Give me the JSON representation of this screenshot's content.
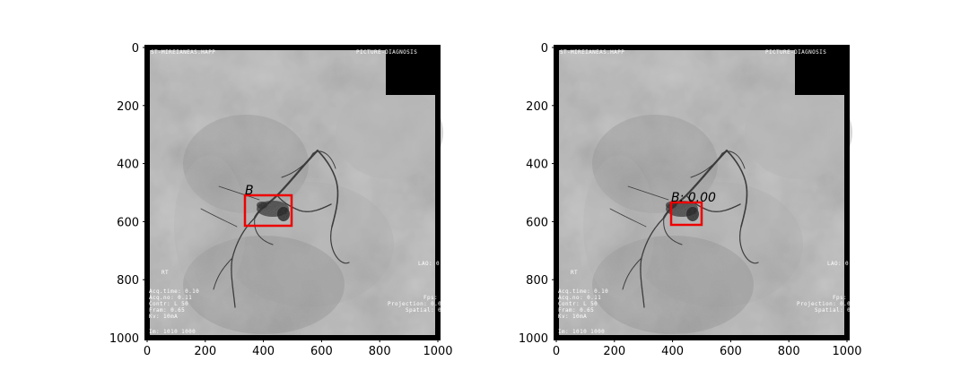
{
  "panels": [
    {
      "id": "left",
      "x_ticks": [
        "0",
        "200",
        "400",
        "600",
        "800",
        "1000"
      ],
      "y_ticks": [
        "0",
        "200",
        "400",
        "600",
        "800",
        "1000"
      ],
      "box_label": "B",
      "overlay": {
        "top_left": "ST-MIREIANEAS.HAPP",
        "top_right": "PICTURE-DIAGNOSIS",
        "mid_left": "RT",
        "mid_right": "LAO: 0",
        "bottom_left_lines": [
          "Acq.time: 0.10",
          "Acq.no: 0.11",
          "Contr: L 50",
          "Fram: 0.65",
          "Kv: 10mA"
        ],
        "bottom_right_lines": [
          "Fps: 10",
          "Projection: 0.00",
          "Spatial: 0"
        ],
        "bottom_left_last": "Im: 1010 1000"
      }
    },
    {
      "id": "right",
      "x_ticks": [
        "0",
        "200",
        "400",
        "600",
        "800",
        "1000"
      ],
      "y_ticks": [
        "0",
        "200",
        "400",
        "600",
        "800",
        "1000"
      ],
      "box_label": "B: 0.00",
      "overlay": {
        "top_left": "ST-MIREIANEAS.HAPP",
        "top_right": "PICTURE-DIAGNOSIS",
        "mid_left": "RT",
        "mid_right": "LAO: 0",
        "bottom_left_lines": [
          "Acq.time: 0.10",
          "Acq.no: 0.11",
          "Contr: L 50",
          "Fram: 0.65",
          "Kv: 10mA"
        ],
        "bottom_right_lines": [
          "Fps: 10",
          "Projection: 0.00",
          "Spatial: 0"
        ],
        "bottom_left_last": "Im: 1010 1000"
      }
    }
  ],
  "colors": {
    "box": "#ee0000",
    "frame": "#000000",
    "image_bg": "#9a9a9a"
  }
}
